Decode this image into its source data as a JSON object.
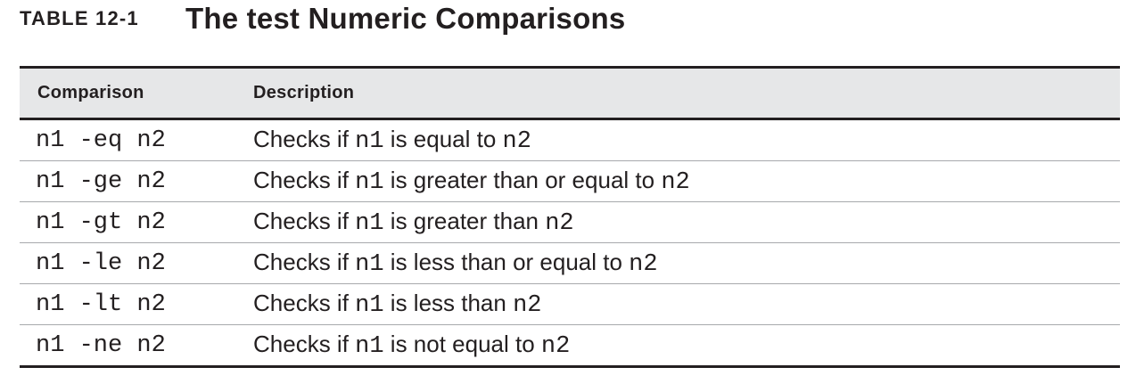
{
  "caption": {
    "label": "TABLE 12-1",
    "title": "The test Numeric Comparisons"
  },
  "table": {
    "headers": {
      "comparison": "Comparison",
      "description": "Description"
    },
    "rows": [
      {
        "comparison": "n1 -eq n2",
        "desc_prefix": "Checks if ",
        "left_operand": "n1",
        "desc_middle": " is equal to ",
        "right_operand": "n2"
      },
      {
        "comparison": "n1 -ge n2",
        "desc_prefix": "Checks if ",
        "left_operand": "n1",
        "desc_middle": " is greater than or equal to ",
        "right_operand": "n2"
      },
      {
        "comparison": "n1 -gt n2",
        "desc_prefix": "Checks if ",
        "left_operand": "n1",
        "desc_middle": " is greater than ",
        "right_operand": "n2"
      },
      {
        "comparison": "n1 -le n2",
        "desc_prefix": "Checks if ",
        "left_operand": "n1",
        "desc_middle": " is less than or equal to ",
        "right_operand": "n2"
      },
      {
        "comparison": "n1 -lt n2",
        "desc_prefix": "Checks if ",
        "left_operand": "n1",
        "desc_middle": " is less than ",
        "right_operand": "n2"
      },
      {
        "comparison": "n1 -ne n2",
        "desc_prefix": "Checks if ",
        "left_operand": "n1",
        "desc_middle": " is not equal to ",
        "right_operand": "n2"
      }
    ]
  },
  "colors": {
    "text": "#231f20",
    "header_background": "#e6e7e8",
    "row_divider": "#a7a9ac"
  }
}
